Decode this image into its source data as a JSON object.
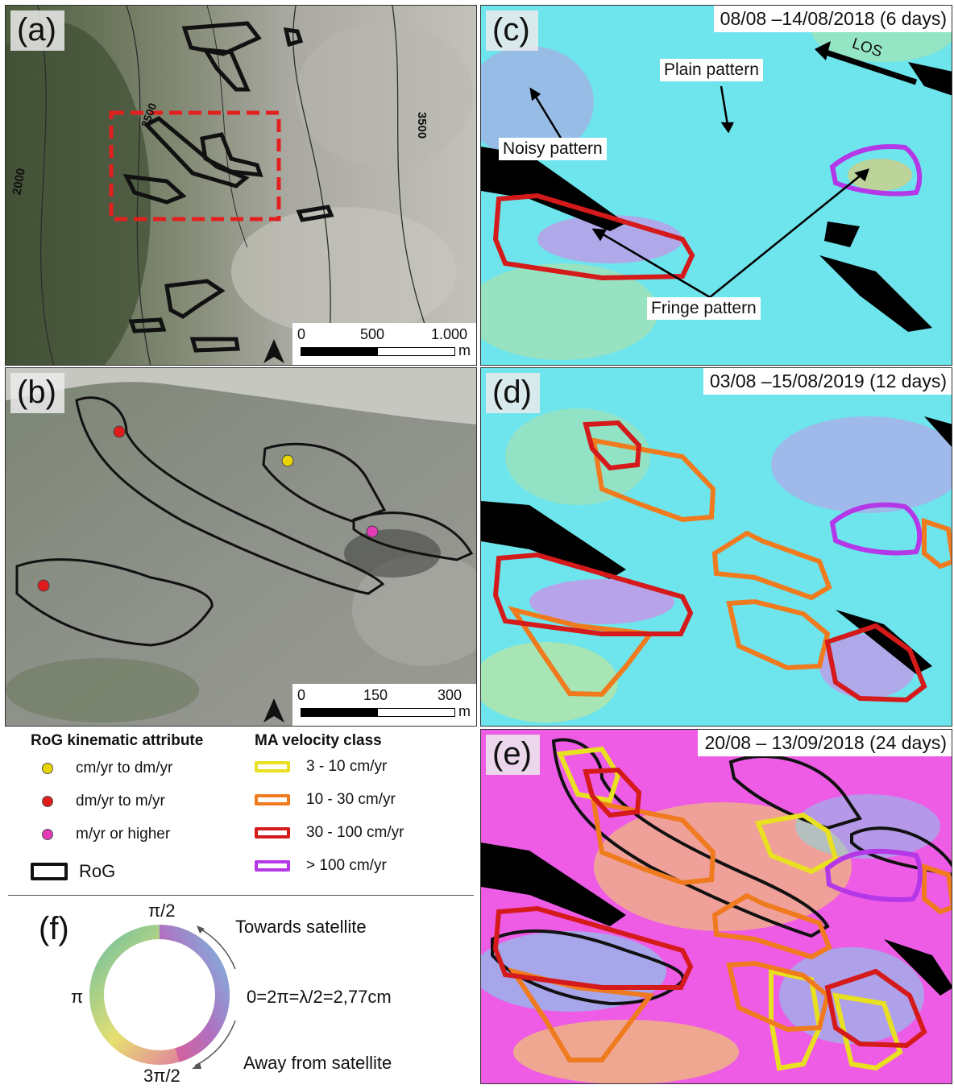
{
  "panels": {
    "a": {
      "letter": "(a)",
      "contours": [
        "2500",
        "3500",
        "2000"
      ],
      "scale": {
        "ticks": [
          "0",
          "500",
          "1.000"
        ],
        "unit": "m"
      }
    },
    "b": {
      "letter": "(b)",
      "scale": {
        "ticks": [
          "0",
          "150",
          "300"
        ],
        "unit": "m"
      }
    },
    "c": {
      "letter": "(c)",
      "date": "08/08 –14/08/2018 (6 days)",
      "los": "LOS",
      "annotations": {
        "noisy": "Noisy pattern",
        "plain": "Plain pattern",
        "fringe": "Fringe pattern"
      }
    },
    "d": {
      "letter": "(d)",
      "date": "03/08 –15/08/2019 (12 days)"
    },
    "e": {
      "letter": "(e)",
      "date": "20/08 – 13/09/2018 (24 days)"
    },
    "f": {
      "letter": "(f)"
    }
  },
  "legend": {
    "rog_title": "RoG kinematic attribute",
    "rog_items": [
      {
        "label": "cm/yr to dm/yr",
        "color": "#e8d400"
      },
      {
        "label": "dm/yr to m/yr",
        "color": "#e01b1b"
      },
      {
        "label": "m/yr or higher",
        "color": "#e33ab5"
      }
    ],
    "rog_outline_label": "RoG",
    "ma_title": "MA velocity class",
    "ma_items": [
      {
        "label": "3 - 10 cm/yr",
        "color": "#e8e020"
      },
      {
        "label": "10 - 30 cm/yr",
        "color": "#f07a1e"
      },
      {
        "label": "30 - 100 cm/yr",
        "color": "#d41a1a"
      },
      {
        "label": "> 100 cm/yr",
        "color": "#b437e8"
      }
    ]
  },
  "phase_wheel": {
    "top": "π/2",
    "left": "π",
    "bottom": "3π/2",
    "right": "0=2π=λ/2=2,77cm",
    "towards": "Towards satellite",
    "away": "Away from satellite"
  },
  "colors": {
    "ortho_base": "#8e978a",
    "phase_cyan": "#5ee8f0",
    "phase_magenta": "#ee5ce6",
    "rog_outline": "#111111",
    "ma_dashed": "#e32020"
  }
}
